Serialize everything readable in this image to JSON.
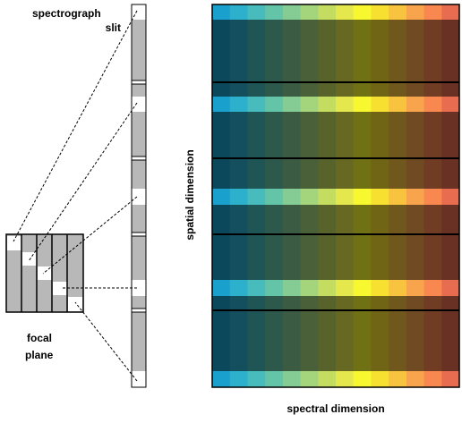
{
  "slit_label": {
    "line1": "spectrograph",
    "line2": "slit"
  },
  "focal_label": {
    "line1": "focal",
    "line2": "plane"
  },
  "axis_labels": {
    "spatial": "spatial dimension",
    "spectral": "spectral dimension"
  }
}
